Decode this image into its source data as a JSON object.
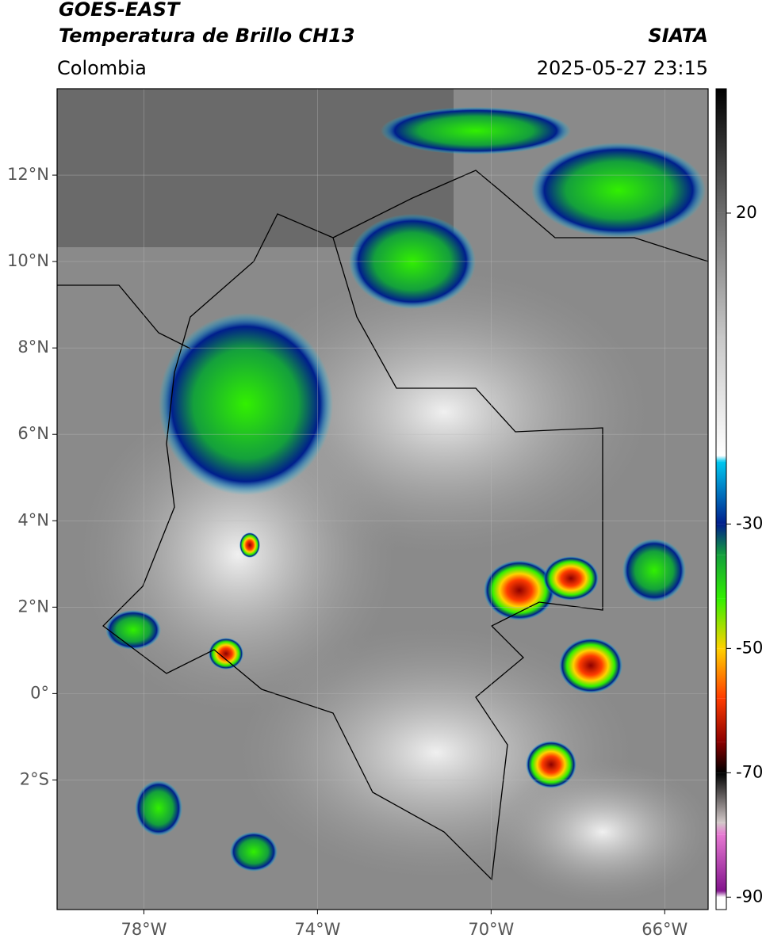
{
  "header": {
    "title": "GOES-EAST",
    "subtitle": "Temperatura de Brillo CH13",
    "source": "SIATA",
    "region": "Colombia",
    "datetime": "2025-05-27 23:15"
  },
  "map": {
    "xlim": [
      -80,
      -65
    ],
    "ylim": [
      -5,
      14
    ],
    "xticks": [
      {
        "value": -78,
        "label": "78°W"
      },
      {
        "value": -74,
        "label": "74°W"
      },
      {
        "value": -70,
        "label": "70°W"
      },
      {
        "value": -66,
        "label": "66°W"
      }
    ],
    "yticks": [
      {
        "value": -2,
        "label": "2°S"
      },
      {
        "value": 0,
        "label": "0°"
      },
      {
        "value": 2,
        "label": "2°N"
      },
      {
        "value": 4,
        "label": "4°N"
      },
      {
        "value": 6,
        "label": "6°N"
      },
      {
        "value": 8,
        "label": "8°N"
      },
      {
        "value": 10,
        "label": "10°N"
      },
      {
        "value": 12,
        "label": "12°N"
      }
    ],
    "grid": true
  },
  "colorbar": {
    "lim": [
      -92,
      40
    ],
    "ticks": [
      20,
      -30,
      -50,
      -70,
      -90
    ],
    "stops": [
      {
        "value": 40,
        "color": "#000000"
      },
      {
        "value": 20,
        "color": "#6e6e6e"
      },
      {
        "value": 0,
        "color": "#c8c8c8"
      },
      {
        "value": -19,
        "color": "#ffffff"
      },
      {
        "value": -20,
        "color": "#00c8f0"
      },
      {
        "value": -30,
        "color": "#001e8c"
      },
      {
        "value": -35,
        "color": "#14a03c"
      },
      {
        "value": -42,
        "color": "#32f000"
      },
      {
        "value": -50,
        "color": "#ffd200"
      },
      {
        "value": -58,
        "color": "#ff3c00"
      },
      {
        "value": -65,
        "color": "#8c0000"
      },
      {
        "value": -70,
        "color": "#000000"
      },
      {
        "value": -78,
        "color": "#d2c8c8"
      },
      {
        "value": -80,
        "color": "#e678d2"
      },
      {
        "value": -89,
        "color": "#82148c"
      },
      {
        "value": -90,
        "color": "#ffffff"
      },
      {
        "value": -92,
        "color": "#ffffff"
      }
    ]
  }
}
